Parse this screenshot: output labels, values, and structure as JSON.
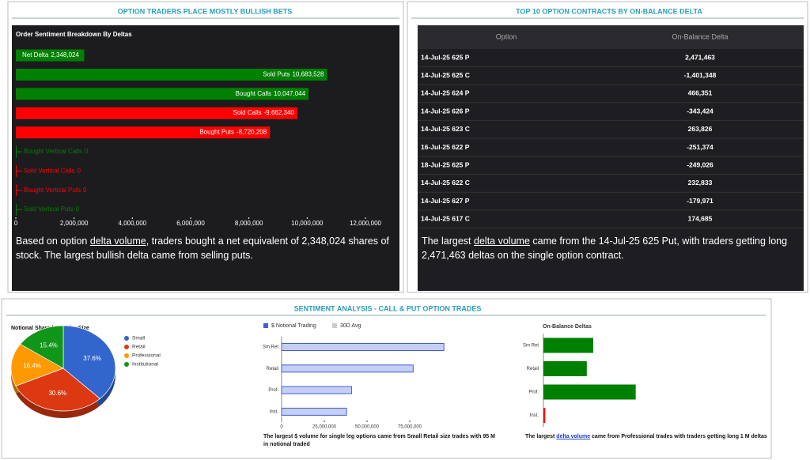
{
  "panels": [
    {
      "title": "OPTION TRADERS PLACE MOSTLY BULLISH BETS",
      "note": {
        "before": "Based on option ",
        "link": "delta volume",
        "after": ", traders bought a net equivalent of 2,348,024 shares of stock. The largest bullish delta came from selling puts."
      }
    },
    {
      "title": "TOP 10 OPTION CONTRACTS BY ON-BALANCE DELTA",
      "note": {
        "before": "The largest ",
        "link": "delta volume",
        "after": " came from the 14-Jul-25 625 Put, with traders getting long 2,471,463 deltas on the single option contract."
      }
    },
    {
      "title": "SENTIMENT ANALYSIS - CALL & PUT OPTION TRADES",
      "notes": [
        {
          "text": "The largest $ volume for single leg options came from Small Retail size trades with 95 M in notional traded"
        },
        {
          "before": "The largest ",
          "link": "delta volume",
          "after": " came from Professional trades with traders getting long 1 M deltas"
        }
      ]
    }
  ],
  "table": {
    "header": [
      "Option",
      "On-Balance Delta"
    ],
    "rows": [
      [
        "14-Jul-25 625 P",
        "2,471,463"
      ],
      [
        "14-Jul-25 625 C",
        "-1,401,348"
      ],
      [
        "14-Jul-25 624 P",
        "466,351"
      ],
      [
        "14-Jul-25 626 P",
        "-343,424"
      ],
      [
        "14-Jul-25 623 C",
        "263,826"
      ],
      [
        "16-Jul-25 622 P",
        "-251,374"
      ],
      [
        "18-Jul-25 625 P",
        "-249,026"
      ],
      [
        "14-Jul-25 622 C",
        "232,833"
      ],
      [
        "14-Jul-25 627 P",
        "-179,971"
      ],
      [
        "14-Jul-25 617 C",
        "174,685"
      ]
    ]
  },
  "chart_data": [
    {
      "type": "bar",
      "orientation": "horizontal",
      "title": "Order Sentiment Breakdown By Deltas",
      "categories": [
        "Net Delta",
        "Sold Puts",
        "Bought Calls",
        "Sold Calls",
        "Bought Puts",
        "Bought Vertical Calls",
        "Sold Vertical Calls",
        "Bought Vertical Puts",
        "Sold Vertical Puts"
      ],
      "values": [
        2348024,
        10683528,
        10047044,
        -9662340,
        -8720208,
        0,
        0,
        0,
        0
      ],
      "value_labels": [
        "2,348,024",
        "10,683,528",
        "10,047,044",
        "-9,662,340",
        "-8,720,208",
        "0",
        "0",
        "0",
        "0"
      ],
      "colors": [
        "#008000",
        "#008000",
        "#008000",
        "#ff0000",
        "#ff0000",
        "#008000",
        "#ff0000",
        "#ff0000",
        "#008000"
      ],
      "xlim": [
        0,
        12000000
      ],
      "xticks": [
        0,
        {
          "value": 2000000,
          "label": "2,000,000"
        },
        {
          "value": 4000000,
          "label": "4,000,000"
        },
        {
          "value": 6000000,
          "label": "6,000,000"
        },
        {
          "value": 8000000,
          "label": "8,000,000"
        },
        {
          "value": 10000000,
          "label": "10,000,000"
        },
        {
          "value": 12000000,
          "label": "12,000,000"
        }
      ]
    },
    {
      "type": "pie",
      "title": "Notional Share by Trader Size",
      "categories": [
        "Small",
        "Retail",
        "Professional",
        "Institutional"
      ],
      "values": [
        37.6,
        30.6,
        16.4,
        15.4
      ],
      "value_labels": [
        "37.6%",
        "30.6%",
        "16.4%",
        "15.4%"
      ],
      "colors": [
        "#3366cc",
        "#dc3912",
        "#ff9900",
        "#109618"
      ]
    },
    {
      "type": "bar",
      "orientation": "horizontal",
      "categories": [
        "Sm Ret",
        "Retail",
        "Prof.",
        "Inst."
      ],
      "series": [
        {
          "name": "$ Notional Trading",
          "color": "#3f5fd6",
          "values": [
            95000000,
            77000000,
            41000000,
            38000000
          ]
        },
        {
          "name": "30D Avg",
          "color": "#cccccc",
          "values": [
            null,
            null,
            null,
            null
          ]
        }
      ],
      "xlim": [
        0,
        100000000
      ],
      "xticks": [
        0,
        {
          "value": 25000000,
          "label": "25,000,000"
        },
        {
          "value": 50000000,
          "label": "50,000,000"
        },
        {
          "value": 75000000,
          "label": "75,000,000"
        }
      ]
    },
    {
      "type": "bar",
      "orientation": "horizontal",
      "title": "On-Balance Deltas",
      "categories": [
        "Sm Ret",
        "Retail",
        "Prof.",
        "Inst."
      ],
      "values": [
        540000,
        470000,
        1000000,
        -20000
      ],
      "colors": [
        "#008000",
        "#008000",
        "#008000",
        "#ff0000"
      ],
      "xlim": [
        0,
        1200000
      ]
    }
  ]
}
